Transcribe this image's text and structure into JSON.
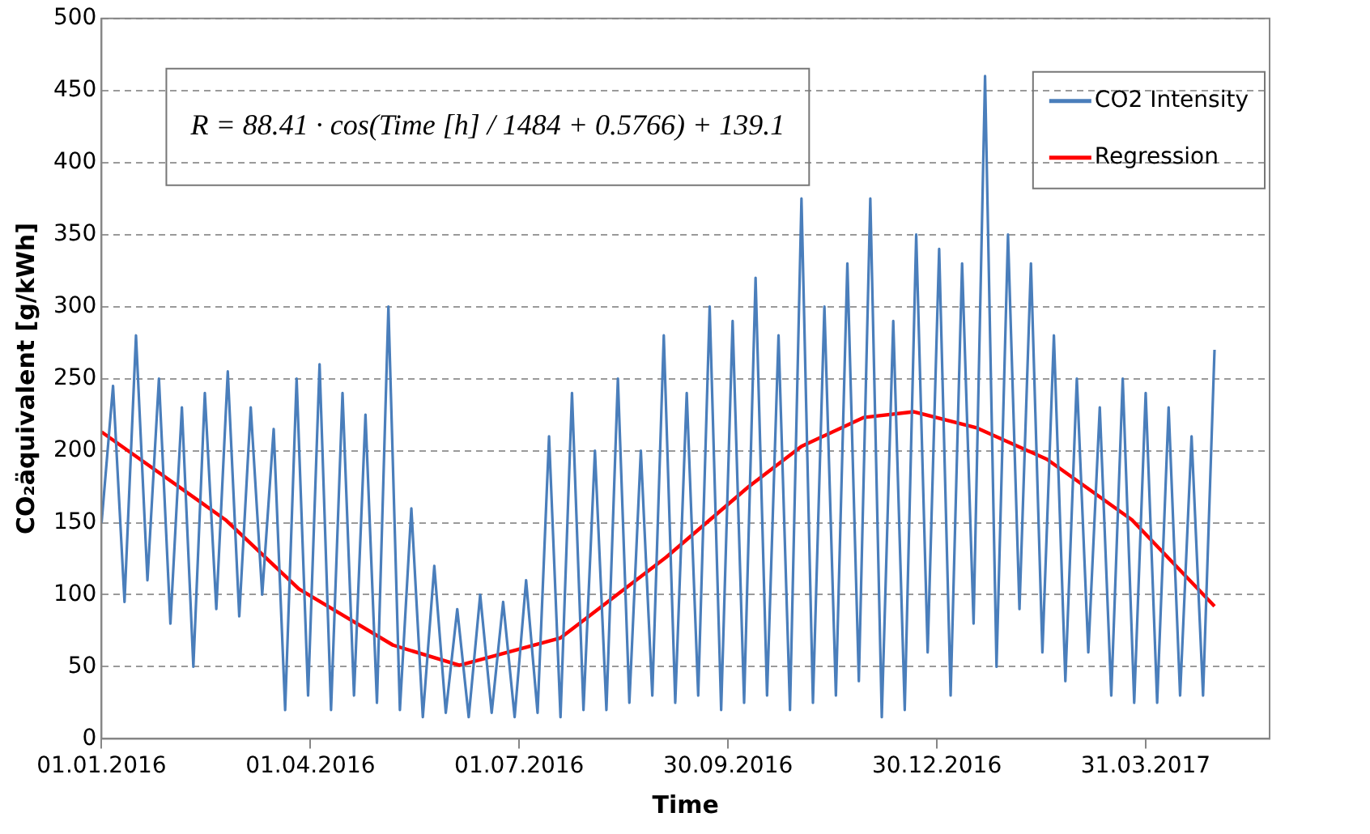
{
  "chart_data": {
    "type": "line",
    "xlabel": "Time",
    "ylabel": "CO₂äquivalent [g/kWh]",
    "xlim": [
      "2016-01-01",
      "2017-05-24"
    ],
    "xticks": [
      {
        "value": "2016-01-01",
        "label": "01.01.2016"
      },
      {
        "value": "2016-04-01",
        "label": "01.04.2016"
      },
      {
        "value": "2016-07-01",
        "label": "01.07.2016"
      },
      {
        "value": "2016-09-30",
        "label": "30.09.2016"
      },
      {
        "value": "2016-12-30",
        "label": "30.12.2016"
      },
      {
        "value": "2017-03-31",
        "label": "31.03.2017"
      }
    ],
    "ylim": [
      0,
      500
    ],
    "yticks": [
      0,
      50,
      100,
      150,
      200,
      250,
      300,
      350,
      400,
      450,
      500
    ],
    "grid": "y",
    "legend": "top right",
    "marker": "none",
    "line_style": "solid",
    "annotations": [
      "R = 88.41 · cos(Time [h] / 1484 + 0.5766) + 139.1"
    ],
    "series": [
      {
        "name": "CO2 Intensity",
        "color": "#4a7ebb",
        "x": [
          "2016-01-01",
          "2016-01-06",
          "2016-01-11",
          "2016-01-16",
          "2016-01-21",
          "2016-01-26",
          "2016-01-31",
          "2016-02-05",
          "2016-02-10",
          "2016-02-15",
          "2016-02-20",
          "2016-02-25",
          "2016-03-01",
          "2016-03-06",
          "2016-03-11",
          "2016-03-16",
          "2016-03-21",
          "2016-03-26",
          "2016-03-31",
          "2016-04-05",
          "2016-04-10",
          "2016-04-15",
          "2016-04-20",
          "2016-04-25",
          "2016-04-30",
          "2016-05-05",
          "2016-05-10",
          "2016-05-15",
          "2016-05-20",
          "2016-05-25",
          "2016-05-30",
          "2016-06-04",
          "2016-06-09",
          "2016-06-14",
          "2016-06-19",
          "2016-06-24",
          "2016-06-29",
          "2016-07-04",
          "2016-07-09",
          "2016-07-14",
          "2016-07-19",
          "2016-07-24",
          "2016-07-29",
          "2016-08-03",
          "2016-08-08",
          "2016-08-13",
          "2016-08-18",
          "2016-08-23",
          "2016-08-28",
          "2016-09-02",
          "2016-09-07",
          "2016-09-12",
          "2016-09-17",
          "2016-09-22",
          "2016-09-27",
          "2016-10-02",
          "2016-10-07",
          "2016-10-12",
          "2016-10-17",
          "2016-10-22",
          "2016-10-27",
          "2016-11-01",
          "2016-11-06",
          "2016-11-11",
          "2016-11-16",
          "2016-11-21",
          "2016-11-26",
          "2016-12-01",
          "2016-12-06",
          "2016-12-11",
          "2016-12-16",
          "2016-12-21",
          "2016-12-26",
          "2016-12-31",
          "2017-01-05",
          "2017-01-10",
          "2017-01-15",
          "2017-01-20",
          "2017-01-25",
          "2017-01-30",
          "2017-02-04",
          "2017-02-09",
          "2017-02-14",
          "2017-02-19",
          "2017-02-24",
          "2017-03-01",
          "2017-03-06",
          "2017-03-11",
          "2017-03-16",
          "2017-03-21",
          "2017-03-26",
          "2017-03-31",
          "2017-04-05",
          "2017-04-10",
          "2017-04-15",
          "2017-04-20",
          "2017-04-25",
          "2017-04-30"
        ],
        "values": [
          150,
          245,
          95,
          280,
          110,
          250,
          80,
          230,
          50,
          240,
          90,
          255,
          85,
          230,
          100,
          215,
          20,
          250,
          30,
          260,
          20,
          240,
          30,
          225,
          25,
          300,
          20,
          160,
          15,
          120,
          18,
          90,
          15,
          100,
          18,
          95,
          15,
          110,
          18,
          210,
          15,
          240,
          20,
          200,
          20,
          250,
          25,
          200,
          30,
          280,
          25,
          240,
          30,
          300,
          20,
          290,
          25,
          320,
          30,
          280,
          20,
          375,
          25,
          300,
          30,
          330,
          40,
          375,
          15,
          290,
          20,
          350,
          60,
          340,
          30,
          330,
          80,
          460,
          50,
          350,
          90,
          330,
          60,
          280,
          40,
          250,
          60,
          230,
          30,
          250,
          25,
          240,
          25,
          230,
          30,
          210,
          30,
          270
        ]
      },
      {
        "name": "Regression",
        "color": "#ff0000",
        "x": [
          "2016-01-01",
          "2016-02-24",
          "2016-03-27",
          "2016-05-07",
          "2016-06-05",
          "2016-07-19",
          "2016-09-03",
          "2016-10-09",
          "2016-11-01",
          "2016-11-28",
          "2016-12-20",
          "2017-01-16",
          "2017-02-16",
          "2017-03-25",
          "2017-04-30"
        ],
        "values": [
          213,
          152,
          104,
          65,
          51,
          70,
          126,
          175,
          203,
          223,
          227,
          216,
          194,
          152,
          92
        ]
      }
    ]
  }
}
